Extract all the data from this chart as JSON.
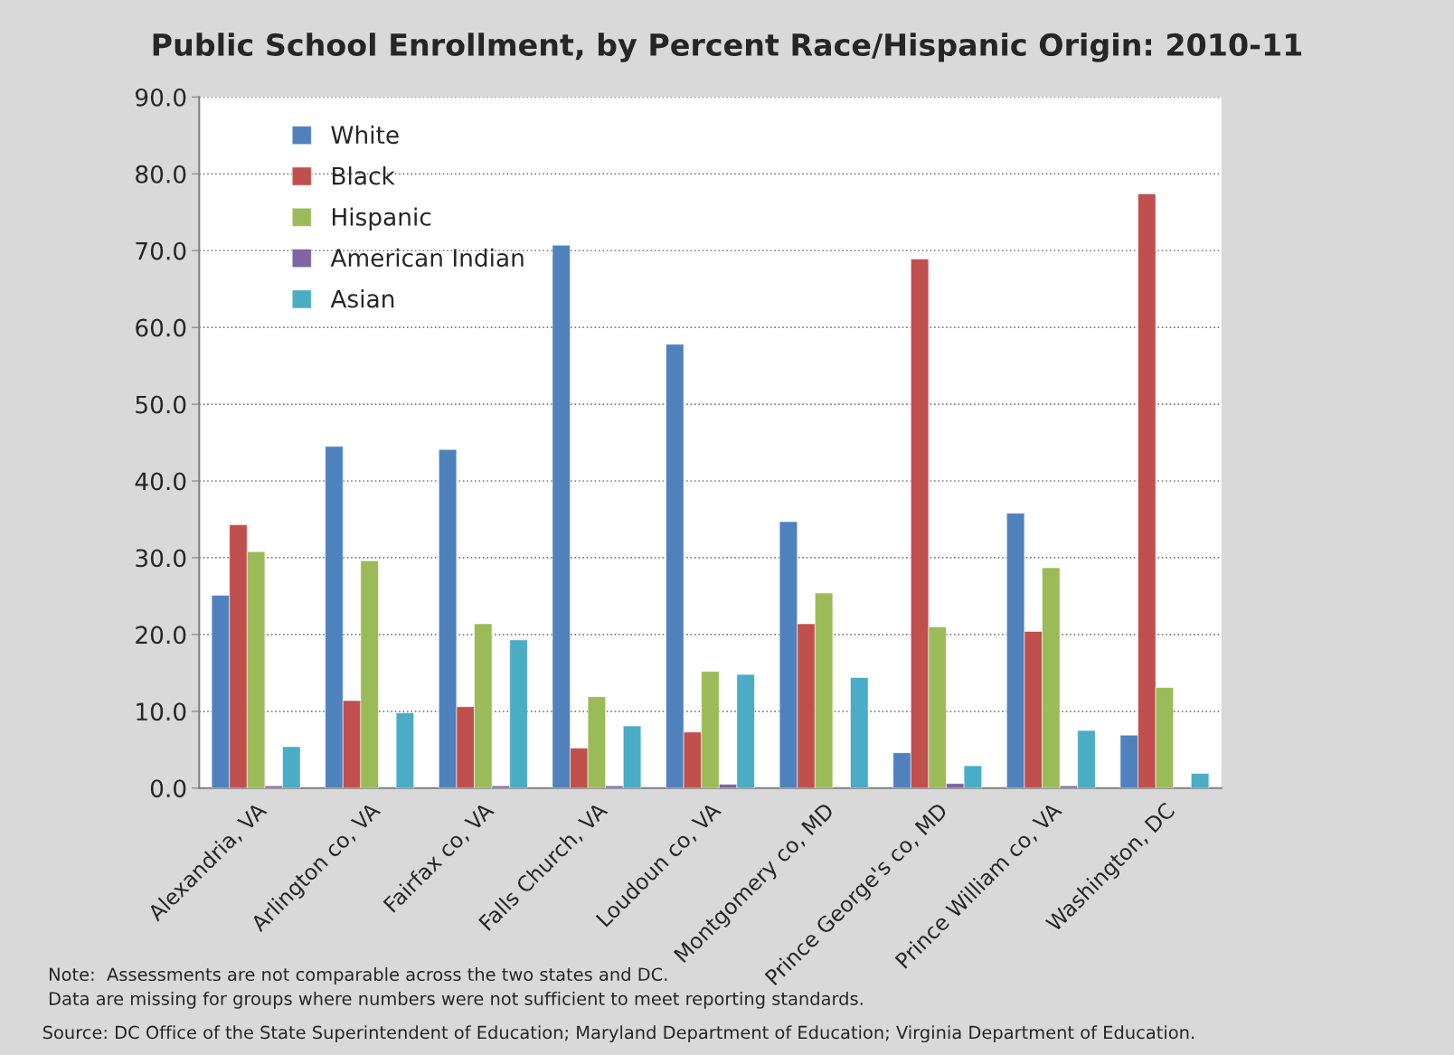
{
  "chart_data": {
    "type": "bar",
    "title": "Public School Enrollment, by Percent Race/Hispanic Origin: 2010-11",
    "categories": [
      "Alexandria, VA",
      "Arlington co, VA",
      "Fairfax co, VA",
      "Falls Church, VA",
      "Loudoun co, VA",
      "Montgomery co, MD",
      "Prince George's co, MD",
      "Prince William co, VA",
      "Washington, DC"
    ],
    "series": [
      {
        "name": "White",
        "color": "#4f81bd",
        "values": [
          25.1,
          44.5,
          44.1,
          70.7,
          57.8,
          34.7,
          4.6,
          35.8,
          6.9
        ]
      },
      {
        "name": "Black",
        "color": "#c0504d",
        "values": [
          34.3,
          11.4,
          10.6,
          5.2,
          7.3,
          21.4,
          68.9,
          20.4,
          77.4
        ]
      },
      {
        "name": "Hispanic",
        "color": "#9bbb59",
        "values": [
          30.8,
          29.6,
          21.4,
          11.9,
          15.2,
          25.4,
          21.0,
          28.7,
          13.1
        ]
      },
      {
        "name": "American Indian",
        "color": "#8064a2",
        "values": [
          0.3,
          null,
          0.3,
          0.3,
          0.5,
          null,
          0.6,
          0.3,
          null
        ]
      },
      {
        "name": "Asian",
        "color": "#4bacc6",
        "values": [
          5.4,
          9.8,
          19.3,
          8.1,
          14.8,
          14.4,
          2.9,
          7.5,
          1.9
        ]
      }
    ],
    "ylim": [
      0,
      90
    ],
    "yticks": [
      {
        "value": 0,
        "label": "0.0"
      },
      {
        "value": 10,
        "label": "10.0"
      },
      {
        "value": 20,
        "label": "20.0"
      },
      {
        "value": 30,
        "label": "30.0"
      },
      {
        "value": 40,
        "label": "40.0"
      },
      {
        "value": 50,
        "label": "50.0"
      },
      {
        "value": 60,
        "label": "60.0"
      },
      {
        "value": 70,
        "label": "70.0"
      },
      {
        "value": 80,
        "label": "80.0"
      },
      {
        "value": 90,
        "label": "90.0"
      }
    ],
    "grid": "y",
    "legend": "top left",
    "annotations": [
      "Note:  Assessments are not comparable across the two states and DC.",
      "Data are missing for groups where numbers were not sufficient to meet reporting standards.",
      "Source: DC Office of the State Superintendent of Education; Maryland Department of Education; Virginia Department of Education."
    ]
  }
}
